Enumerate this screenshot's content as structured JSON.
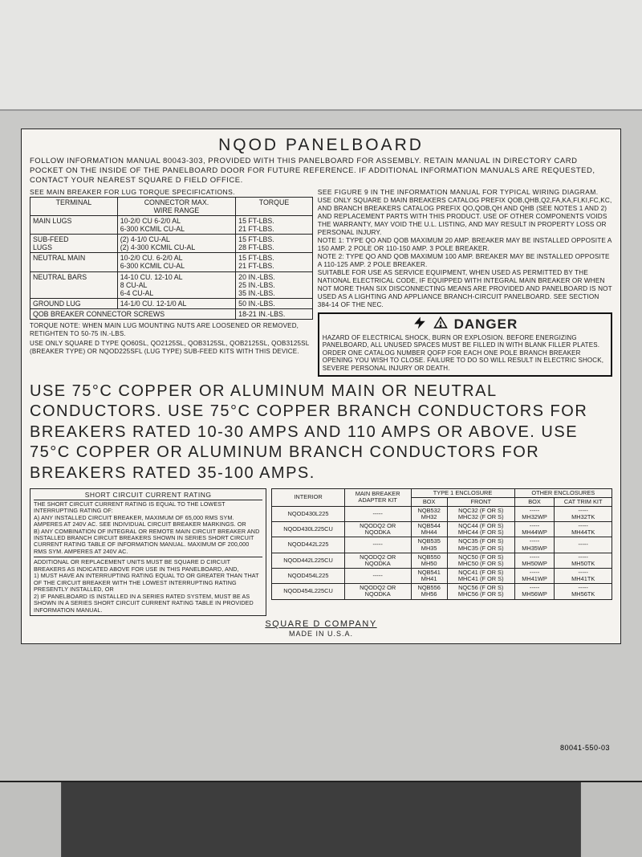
{
  "colors": {
    "wall": "#e5e5e3",
    "panel": "#c9c9c7",
    "label_bg": "#f5f3ef",
    "text": "#222222",
    "border": "#222222"
  },
  "title": "NQOD PANELBOARD",
  "intro": "FOLLOW INFORMATION MANUAL 80043-303, PROVIDED WITH THIS PANELBOARD FOR ASSEMBLY. RETAIN MANUAL IN DIRECTORY CARD POCKET ON THE INSIDE OF THE PANELBOARD DOOR FOR FUTURE REFERENCE. IF ADDITIONAL INFORMATION MANUALS ARE REQUESTED, CONTACT YOUR NEAREST SQUARE D FIELD OFFICE.",
  "torque_header_note": "SEE MAIN BREAKER FOR LUG TORQUE SPECIFICATIONS.",
  "torque_table": {
    "headers": [
      "TERMINAL",
      "CONNECTOR MAX.\nWIRE RANGE",
      "TORQUE"
    ],
    "rows": [
      [
        "MAIN LUGS",
        "10-2/0 CU   6-2/0 AL\n6-300 KCMIL CU-AL",
        "15 FT-LBS.\n21 FT-LBS."
      ],
      [
        "SUB-FEED\nLUGS",
        "(2) 4-1/0 CU-AL\n(2) 4-300 KCMIL CU-AL",
        "15 FT-LBS.\n28 FT-LBS."
      ],
      [
        "NEUTRAL MAIN",
        "10-2/0 CU.   6-2/0 AL\n6-300 KCMIL CU-AL",
        "15 FT-LBS.\n21 FT-LBS."
      ],
      [
        "NEUTRAL BARS",
        "14-10 CU.   12-10 AL\n8 CU-AL\n6-4 CU-AL",
        "20 IN.-LBS.\n25 IN.-LBS.\n35 IN.-LBS."
      ],
      [
        "GROUND LUG",
        "14-1/0 CU.   12-1/0 AL",
        "50 IN.-LBS."
      ],
      [
        "QOB BREAKER CONNECTOR SCREWS",
        "",
        "18-21 IN.-LBS."
      ]
    ]
  },
  "torque_note": "TORQUE NOTE: WHEN MAIN LUG MOUNTING NUTS ARE LOOSENED OR REMOVED, RETIGHTEN TO 50-75 IN.-LBS.",
  "use_only": "USE ONLY SQUARE D TYPE QO60SL, QO2125SL, QOB3125SL, QOB2125SL, QOB3125SL (BREAKER TYPE) OR NQOD225SFL (LUG TYPE) SUB-FEED KITS WITH THIS DEVICE.",
  "right_notes": {
    "line0": "SEE FIGURE 9 IN THE INFORMATION MANUAL FOR TYPICAL WIRING DIAGRAM.",
    "p1": "USE ONLY SQUARE D MAIN BREAKERS CATALOG PREFIX QOB,QHB,Q2,FA,KA,FI,KI,FC,KC, AND BRANCH BREAKERS CATALOG PREFIX QO,QOB,QH AND QHB (SEE NOTES 1 AND 2) AND REPLACEMENT PARTS WITH THIS PRODUCT. USE OF OTHER COMPONENTS VOIDS THE WARRANTY, MAY VOID THE U.L. LISTING, AND MAY RESULT IN PROPERTY LOSS OR PERSONAL INJURY.",
    "n1": "NOTE 1: TYPE QO AND QOB MAXIMUM 20 AMP. BREAKER MAY BE INSTALLED OPPOSITE A 150 AMP. 2 POLE OR 110-150 AMP. 3 POLE BREAKER.",
    "n2": "NOTE 2: TYPE QO AND QOB MAXIMUM 100 AMP. BREAKER MAY BE INSTALLED OPPOSITE A 110-125 AMP. 2 POLE BREAKER.",
    "p2": "SUITABLE FOR USE AS SERVICE EQUIPMENT, WHEN USED AS PERMITTED BY THE NATIONAL ELECTRICAL CODE, IF EQUIPPED WITH INTEGRAL MAIN BREAKER OR WHEN NOT MORE THAN SIX DISCONNECTING MEANS ARE PROVIDED AND PANELBOARD IS NOT USED AS A LIGHTING AND APPLIANCE BRANCH-CIRCUIT PANELBOARD. SEE SECTION 384-14 OF THE NEC."
  },
  "danger": {
    "heading": "DANGER",
    "body": "HAZARD OF ELECTRICAL SHOCK, BURN OR EXPLOSION. BEFORE ENERGIZING PANELBOARD, ALL UNUSED SPACES MUST BE FILLED IN WITH BLANK FILLER PLATES. ORDER ONE CATALOG NUMBER QOFP FOR EACH ONE POLE BRANCH BREAKER OPENING YOU WISH TO CLOSE. FAILURE TO DO SO WILL RESULT IN ELECTRIC SHOCK, SEVERE PERSONAL INJURY OR DEATH."
  },
  "big_use": "USE 75°C COPPER OR ALUMINUM MAIN OR NEUTRAL CONDUCTORS. USE 75°C COPPER BRANCH CONDUCTORS FOR BREAKERS RATED 10-30 AMPS AND 110 AMPS OR ABOVE. USE 75°C COPPER OR ALUMINUM BRANCH CONDUCTORS FOR BREAKERS RATED 35-100 AMPS.",
  "sccr": {
    "title": "SHORT CIRCUIT CURRENT RATING",
    "body1": "THE SHORT CIRCUIT CURRENT RATING IS EQUAL TO THE LOWEST INTERRUPTING RATING OF:",
    "a": "A) ANY INSTALLED CIRCUIT BREAKER, MAXIMUM OF 65,000 RMS SYM. AMPERES AT 240V AC. SEE INDIVIDUAL CIRCUIT BREAKER MARKINGS. OR",
    "b": "B) ANY COMBINATION OF INTEGRAL OR REMOTE MAIN CIRCUIT BREAKER AND INSTALLED BRANCH CIRCUIT BREAKERS SHOWN IN SERIES SHORT CIRCUIT CURRENT RATING TABLE OF INFORMATION MANUAL. MAXIMUM OF 200,000 RMS SYM. AMPERES AT 240V AC.",
    "body2": "ADDITIONAL OR REPLACEMENT UNITS MUST BE SQUARE D CIRCUIT BREAKERS AS INDICATED ABOVE FOR USE IN THIS PANELBOARD, AND,",
    "one": "1) MUST HAVE AN INTERRUPTING RATING EQUAL TO OR GREATER THAN THAT OF THE CIRCUIT BREAKER WITH THE LOWEST INTERRUPTING RATING PRESENTLY INSTALLED, OR",
    "two": "2) IF PANELBOARD IS INSTALLED IN A SERIES RATED SYSTEM, MUST BE AS SHOWN IN A SERIES SHORT CIRCUIT CURRENT RATING TABLE IN PROVIDED INFORMATION MANUAL."
  },
  "enc_table": {
    "top_headers": [
      "INTERIOR",
      "MAIN BREAKER\nADAPTER KIT",
      "TYPE 1 ENCLOSURE",
      "OTHER ENCLOSURES"
    ],
    "sub_headers": [
      "",
      "",
      "BOX",
      "FRONT",
      "BOX",
      "CAT TRIM KIT"
    ],
    "rows": [
      [
        "NQOD430L225",
        "-----",
        "NQB532\nMH32",
        "NQC32  (F OR S)\nMHC32  (F OR S)",
        "-----\nMH32WP",
        "-----\nMH32TK"
      ],
      [
        "NQOD430L225CU",
        "NQODQ2 OR\nNQODKA",
        "NQB544\nMH44",
        "NQC44  (F OR S)\nMHC44  (F OR S)",
        "-----\nMH44WP",
        "-----\nMH44TK"
      ],
      [
        "NQOD442L225",
        "-----",
        "NQB535\nMH35",
        "NQC35  (F OR S)\nMHC35  (F OR S)",
        "-----\nMH35WP",
        "-----"
      ],
      [
        "NQOD442L225CU",
        "NQODQ2 OR\nNQODKA",
        "NQB550\nMH50",
        "NQC50  (F OR S)\nMHC50  (F OR S)",
        "-----\nMH50WP",
        "-----\nMH50TK"
      ],
      [
        "NQOD454L225",
        "-----",
        "NQB541\nMH41",
        "NQC41  (F OR S)\nMHC41  (F OR S)",
        "-----\nMH41WP",
        "-----\nMH41TK"
      ],
      [
        "NQOD454L225CU",
        "NQODQ2 OR\nNQODKA",
        "NQB556\nMH56",
        "NQC56  (F OR S)\nMHC56  (F OR S)",
        "-----\nMH56WP",
        "-----\nMH56TK"
      ]
    ]
  },
  "footer": {
    "company": "SQUARE D COMPANY",
    "made": "MADE IN U.S.A.",
    "partno": "80041-550-03"
  }
}
